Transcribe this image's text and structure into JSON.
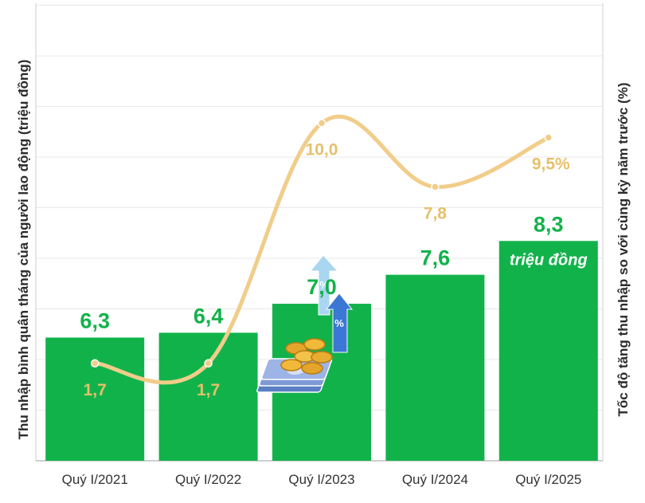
{
  "chart_data": {
    "type": "bar",
    "categories": [
      "Quý I/2021",
      "Quý I/2022",
      "Quý I/2023",
      "Quý I/2024",
      "Quý I/2025"
    ],
    "series": [
      {
        "values": [
          6.3,
          6.4,
          7.0,
          7.6,
          8.3
        ],
        "labels": [
          "6,3",
          "6,4",
          "7,0",
          "7,6",
          "8,3"
        ]
      },
      {
        "type": "line",
        "values": [
          1.7,
          1.7,
          10.0,
          7.8,
          9.5
        ],
        "labels": [
          "1,7",
          "1,7",
          "10,0",
          "7,8",
          "9,5%"
        ]
      }
    ],
    "unit_label": "triệu đồng",
    "ylabel": "Thu nhập bình quân tháng của người lao động (triệu đồng)",
    "y2label": "Tốc độ tăng thu nhập so với cùng kỳ năm trước (%)",
    "grid": true,
    "colors": {
      "bar": "#12b24b",
      "bar_label": "#12b24b",
      "line": "#f1cd8a",
      "line_label": "#e6c06a",
      "axis_text": "#333333",
      "grid": "#e8e8e8"
    },
    "icons": [
      "percent-arrows-icon",
      "money-stack-icon"
    ]
  }
}
